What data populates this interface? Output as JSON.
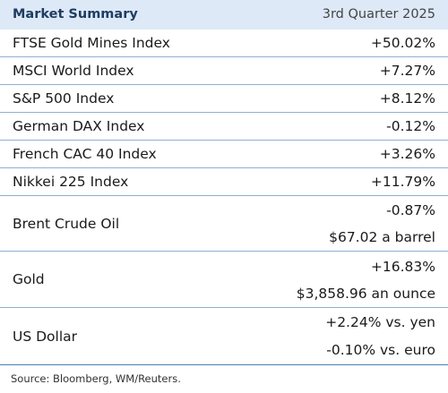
{
  "header": {
    "title": "Market Summary",
    "period": "3rd Quarter 2025"
  },
  "rows": [
    {
      "label": "FTSE Gold Mines Index",
      "value": "+50.02%"
    },
    {
      "label": "MSCI World Index",
      "value": "+7.27%"
    },
    {
      "label": "S&P 500 Index",
      "value": "+8.12%"
    },
    {
      "label": "German DAX Index",
      "value": "-0.12%"
    },
    {
      "label": "French CAC 40 Index",
      "value": "+3.26%"
    },
    {
      "label": "Nikkei 225 Index",
      "value": "+11.79%"
    },
    {
      "label": "Brent Crude Oil",
      "value": "-0.87%",
      "value2": "$67.02 a barrel"
    },
    {
      "label": "Gold",
      "value": "+16.83%",
      "value2": "$3,858.96 an ounce"
    },
    {
      "label": "US Dollar",
      "value": "+2.24% vs. yen",
      "value2": "-0.10% vs. euro"
    }
  ],
  "source": "Source: Bloomberg, WM/Reuters."
}
